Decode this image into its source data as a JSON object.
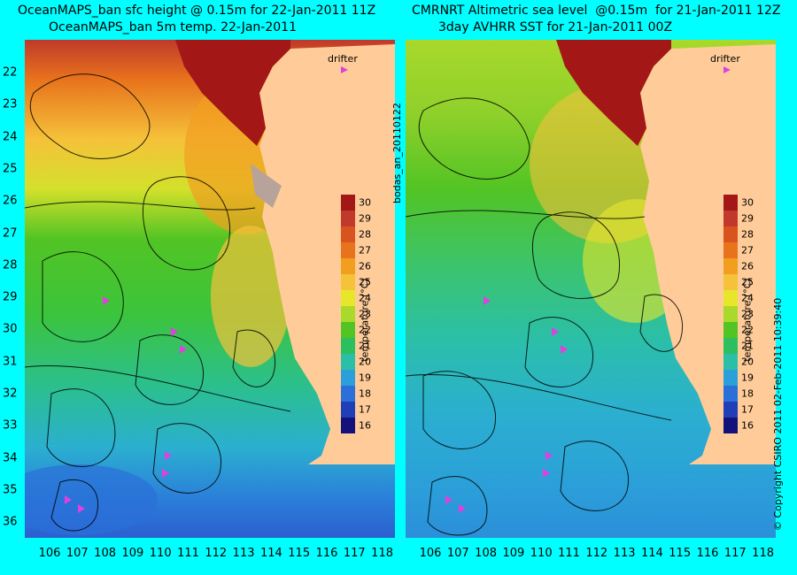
{
  "titles": {
    "left_line1": "OceanMAPS_ban sfc height @ 0.15m for 22-Jan-2011 11Z",
    "left_line2": "OceanMAPS_ban 5m temp. 22-Jan-2011",
    "right_line1": "CMRNRT Altimetric sea level  @0.15m  for 21-Jan-2011 12Z",
    "right_line2": "3day AVHRR SST for 21-Jan-2011 00Z"
  },
  "y_labels": [
    "22",
    "23",
    "24",
    "25",
    "26",
    "27",
    "28",
    "29",
    "30",
    "31",
    "32",
    "33",
    "34",
    "35",
    "36"
  ],
  "x_labels": [
    "106",
    "107",
    "108",
    "109",
    "110",
    "111",
    "112",
    "113",
    "114",
    "115",
    "116",
    "117",
    "118"
  ],
  "colorbar": {
    "ticks": [
      "30",
      "29",
      "28",
      "27",
      "26",
      "25",
      "24",
      "23",
      "22",
      "21",
      "20",
      "19",
      "18",
      "17",
      "16"
    ],
    "title": "temperature (°C)",
    "colors": [
      "#a31717",
      "#c0392b",
      "#d9531e",
      "#e8731c",
      "#f29e1f",
      "#f5c23a",
      "#e8e62b",
      "#a8d92b",
      "#52c424",
      "#2cbf60",
      "#2bbfa8",
      "#2b9fd9",
      "#2b6fd9",
      "#1f3fb8",
      "#12127a"
    ]
  },
  "drifter_label": "drifter",
  "side_label": "bodas_an_20110122",
  "copyright": "© Copyright CSIRO 2011   02-Feb-2011 10:39:40",
  "colors": {
    "background": "#00ffff",
    "land": "#ffcc99",
    "drifter": "#e040e0"
  }
}
